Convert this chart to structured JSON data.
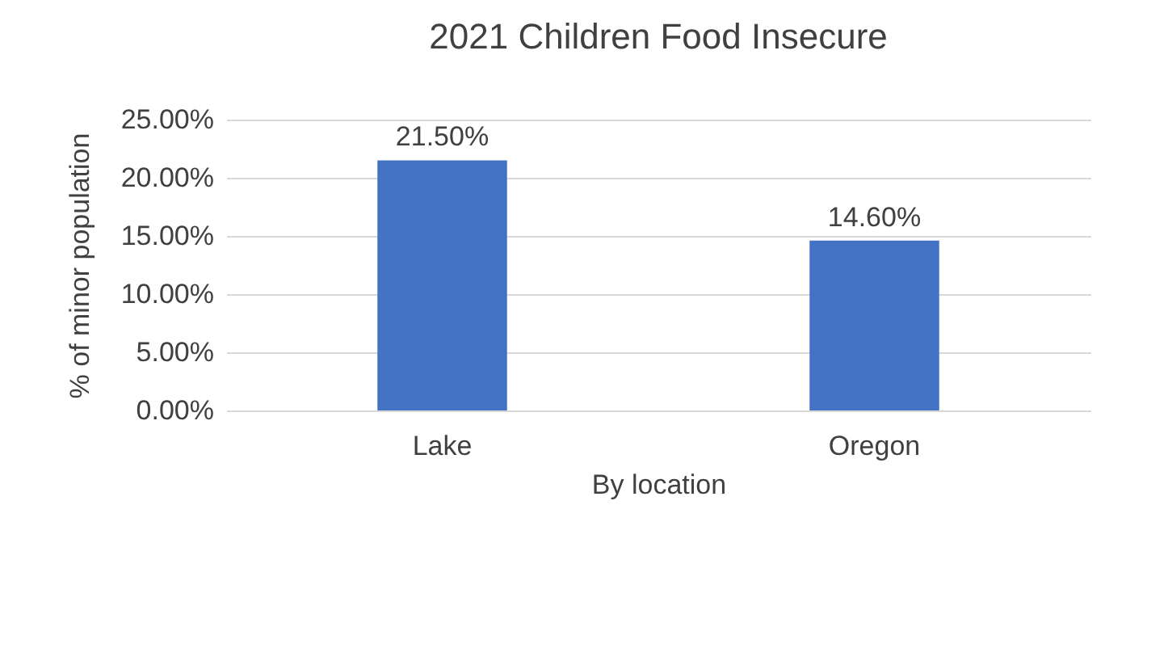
{
  "chart_data": {
    "type": "bar",
    "title": "2021 Children Food Insecure",
    "xlabel": "By location",
    "ylabel": "% of minor population",
    "categories": [
      "Lake",
      "Oregon"
    ],
    "values": [
      21.5,
      14.6
    ],
    "color": "#4472c4",
    "value_labels": [
      "21.50%",
      "14.60%"
    ],
    "ylim": [
      0,
      25
    ],
    "yticks": [
      {
        "value": 0,
        "label": "0.00%"
      },
      {
        "value": 5,
        "label": "5.00%"
      },
      {
        "value": 10,
        "label": "10.00%"
      },
      {
        "value": 15,
        "label": "15.00%"
      },
      {
        "value": 20,
        "label": "20.00%"
      },
      {
        "value": 25,
        "label": "25.00%"
      }
    ],
    "grid": "y"
  }
}
